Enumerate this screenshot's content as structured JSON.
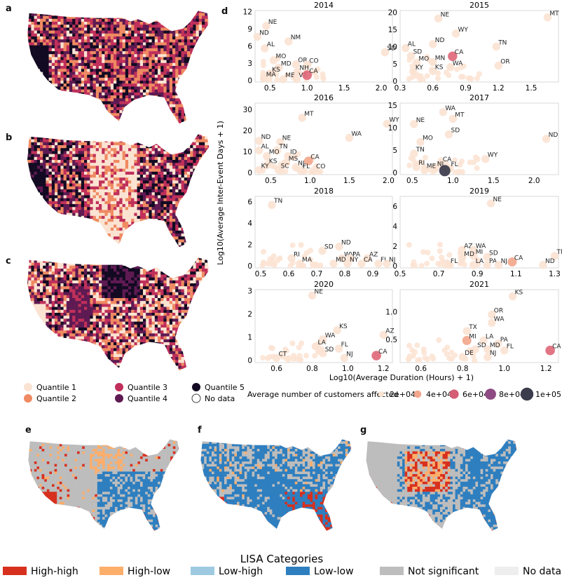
{
  "panel_letters": {
    "a": "a",
    "b": "b",
    "c": "c",
    "d": "d",
    "e": "e",
    "f": "f",
    "g": "g"
  },
  "quantile_legend": {
    "items": [
      {
        "label": "Quantile 1",
        "color": "#fbe3d2"
      },
      {
        "label": "Quantile 2",
        "color": "#ef8a62"
      },
      {
        "label": "Quantile 3",
        "color": "#c0305a"
      },
      {
        "label": "Quantile 4",
        "color": "#5e1a52"
      },
      {
        "label": "Quantile 5",
        "color": "#120a22"
      },
      {
        "label": "No data",
        "color": "#ffffff"
      }
    ]
  },
  "size_legend": {
    "title": "Average number of customers affected",
    "items": [
      {
        "label": "2e+04",
        "value": 20000,
        "color": "#fbe3d2"
      },
      {
        "label": "4e+04",
        "value": 40000,
        "color": "#f3a78d"
      },
      {
        "label": "6e+04",
        "value": 60000,
        "color": "#d45d74"
      },
      {
        "label": "8e+04",
        "value": 80000,
        "color": "#8e4a83"
      },
      {
        "label": "1e+05",
        "value": 100000,
        "color": "#3a3b4c"
      }
    ]
  },
  "lisa_legend": {
    "title": "LISA Categories",
    "items": [
      {
        "label": "High-high",
        "color": "#d7301f"
      },
      {
        "label": "High-low",
        "color": "#fdae6b"
      },
      {
        "label": "Low-high",
        "color": "#9ecae1"
      },
      {
        "label": "Low-low",
        "color": "#2e7fc0"
      },
      {
        "label": "Not significant",
        "color": "#bdbdbd"
      },
      {
        "label": "No data",
        "color": "#eeeeee"
      }
    ]
  },
  "axis_text": {
    "xlabel": "Log10(Average Duration (Hours) + 1)",
    "ylabel": "Log10(Average Inter-Event Days + 1)"
  },
  "chart_data": [
    {
      "type": "scatter",
      "title": "2014",
      "xlim": [
        0.3,
        2.15
      ],
      "ylim": [
        -0.3,
        12.2
      ],
      "xticks": [
        0.5,
        1.0,
        1.5,
        2.0
      ],
      "xtick_labels": [
        "0.5",
        "1.0",
        "1.5",
        "2.0"
      ],
      "yticks": [
        0,
        3,
        6,
        9,
        12
      ],
      "ytick_labels": [
        "0",
        "3",
        "6",
        "9",
        "12"
      ],
      "points": [
        {
          "label": "NE",
          "x": 0.45,
          "y": 9.5
        },
        {
          "label": "ND",
          "x": 0.33,
          "y": 7.6
        },
        {
          "label": "AL",
          "x": 0.43,
          "y": 5.6
        },
        {
          "label": "NM",
          "x": 0.75,
          "y": 6.8
        },
        {
          "label": "MO",
          "x": 0.55,
          "y": 3.5
        },
        {
          "label": "MD",
          "x": 0.62,
          "y": 2.2
        },
        {
          "label": "OR",
          "x": 0.85,
          "y": 2.8
        },
        {
          "label": "CO",
          "x": 1.0,
          "y": 2.7
        },
        {
          "label": "NH",
          "x": 0.87,
          "y": 1.5
        },
        {
          "label": "KS",
          "x": 0.5,
          "y": 1.2
        },
        {
          "label": "MA",
          "x": 0.42,
          "y": 0.3
        },
        {
          "label": "ME",
          "x": 0.68,
          "y": 0.2
        },
        {
          "label": "VT",
          "x": 0.86,
          "y": 0.2
        },
        {
          "label": "CA",
          "x": 1.0,
          "y": 0.9,
          "size": 50000
        },
        {
          "label": "SD",
          "x": 2.05,
          "y": 4.9
        }
      ]
    },
    {
      "type": "scatter",
      "title": "2015",
      "xlim": [
        0.3,
        1.75
      ],
      "ylim": [
        -0.3,
        20.5
      ],
      "xticks": [
        0.3,
        0.6,
        0.9,
        1.2,
        1.5
      ],
      "xtick_labels": [
        "0.3",
        "0.6",
        "0.9",
        "1.2",
        "1.5"
      ],
      "yticks": [
        0,
        5,
        10,
        15,
        20
      ],
      "ytick_labels": [
        "0",
        "5",
        "10",
        "15",
        "20"
      ],
      "points": [
        {
          "label": "NE",
          "x": 0.65,
          "y": 18.2
        },
        {
          "label": "MT",
          "x": 1.65,
          "y": 18.5
        },
        {
          "label": "WY",
          "x": 0.81,
          "y": 13.8
        },
        {
          "label": "ND",
          "x": 0.6,
          "y": 10.7
        },
        {
          "label": "TN",
          "x": 1.18,
          "y": 10.0
        },
        {
          "label": "AL",
          "x": 0.35,
          "y": 9.6
        },
        {
          "label": "SD",
          "x": 0.4,
          "y": 7.3
        },
        {
          "label": "CA",
          "x": 0.78,
          "y": 7.2,
          "size": 45000
        },
        {
          "label": "MO",
          "x": 0.45,
          "y": 5.3
        },
        {
          "label": "MN",
          "x": 0.6,
          "y": 5.5
        },
        {
          "label": "WA",
          "x": 0.76,
          "y": 4.0
        },
        {
          "label": "OR",
          "x": 1.2,
          "y": 4.5
        },
        {
          "label": "KY",
          "x": 0.42,
          "y": 2.8
        },
        {
          "label": "KS",
          "x": 0.6,
          "y": 2.9
        }
      ]
    },
    {
      "type": "scatter",
      "title": "2016",
      "xlim": [
        0.3,
        2.05
      ],
      "ylim": [
        -1,
        33
      ],
      "xticks": [
        0.5,
        1.0,
        1.5,
        2.0
      ],
      "xtick_labels": [
        "0.5",
        "1.0",
        "1.5",
        "2.0"
      ],
      "yticks": [
        0,
        10,
        20,
        30
      ],
      "ytick_labels": [
        "0",
        "10",
        "20",
        "30"
      ],
      "points": [
        {
          "label": "MT",
          "x": 0.9,
          "y": 26.0
        },
        {
          "label": "WY",
          "x": 1.98,
          "y": 23.2
        },
        {
          "label": "WA",
          "x": 1.5,
          "y": 16.5
        },
        {
          "label": "ND",
          "x": 0.35,
          "y": 15.0
        },
        {
          "label": "NE",
          "x": 0.62,
          "y": 14.5
        },
        {
          "label": "AL",
          "x": 0.35,
          "y": 10.5
        },
        {
          "label": "TN",
          "x": 0.58,
          "y": 10.5
        },
        {
          "label": "MO",
          "x": 0.45,
          "y": 7.8
        },
        {
          "label": "ID",
          "x": 0.72,
          "y": 7.8
        },
        {
          "label": "CA",
          "x": 0.98,
          "y": 5.5,
          "size": 32000
        },
        {
          "label": "KS",
          "x": 0.45,
          "y": 3.5
        },
        {
          "label": "MS",
          "x": 0.7,
          "y": 4.6
        },
        {
          "label": "NJ",
          "x": 0.82,
          "y": 2.5
        },
        {
          "label": "KY",
          "x": 0.35,
          "y": 1.2
        },
        {
          "label": "SC",
          "x": 0.6,
          "y": 1.2
        },
        {
          "label": "FL",
          "x": 0.88,
          "y": 1.0
        },
        {
          "label": "CO",
          "x": 1.05,
          "y": 1.0
        }
      ]
    },
    {
      "type": "scatter",
      "title": "2017",
      "xlim": [
        0.35,
        2.3
      ],
      "ylim": [
        -0.5,
        15.5
      ],
      "xticks": [
        0.5,
        1.0,
        1.5,
        2.0
      ],
      "xtick_labels": [
        "0.5",
        "1.0",
        "1.5",
        "2.0"
      ],
      "yticks": [
        0,
        5,
        10,
        15
      ],
      "ytick_labels": [
        "0",
        "5",
        "10",
        "15"
      ],
      "points": [
        {
          "label": "WA",
          "x": 0.88,
          "y": 13.5
        },
        {
          "label": "MT",
          "x": 1.0,
          "y": 12.0
        },
        {
          "label": "NE",
          "x": 0.52,
          "y": 10.8
        },
        {
          "label": "SD",
          "x": 0.95,
          "y": 8.5
        },
        {
          "label": "ND",
          "x": 2.15,
          "y": 7.5
        },
        {
          "label": "MO",
          "x": 0.6,
          "y": 6.8
        },
        {
          "label": "TN",
          "x": 0.52,
          "y": 4.2
        },
        {
          "label": "WY",
          "x": 1.4,
          "y": 3.0
        },
        {
          "label": "CA",
          "x": 0.85,
          "y": 2.0
        },
        {
          "label": "RI",
          "x": 0.55,
          "y": 1.2
        },
        {
          "label": "NJ",
          "x": 0.78,
          "y": 1.0
        },
        {
          "label": "ME",
          "x": 0.65,
          "y": 0.5
        },
        {
          "label": "FL",
          "x": 0.95,
          "y": 0.9
        },
        {
          "label": "",
          "x": 0.9,
          "y": 0.4,
          "size": 100000
        }
      ]
    },
    {
      "type": "scatter",
      "title": "2018",
      "xlim": [
        0.48,
        0.97
      ],
      "ylim": [
        -0.2,
        6.5
      ],
      "xticks": [
        0.5,
        0.6,
        0.7,
        0.8,
        0.9
      ],
      "xtick_labels": [
        "0.5",
        "0.6",
        "0.7",
        "0.8",
        "0.9"
      ],
      "yticks": [
        0,
        2,
        4,
        6
      ],
      "ytick_labels": [
        "0",
        "2",
        "4",
        "6"
      ],
      "points": [
        {
          "label": "TN",
          "x": 0.54,
          "y": 5.7
        },
        {
          "label": "ND",
          "x": 0.78,
          "y": 1.8
        },
        {
          "label": "SD",
          "x": 0.72,
          "y": 1.4
        },
        {
          "label": "RI",
          "x": 0.61,
          "y": 0.7
        },
        {
          "label": "WV",
          "x": 0.79,
          "y": 0.7
        },
        {
          "label": "PA",
          "x": 0.82,
          "y": 0.7
        },
        {
          "label": "AZ",
          "x": 0.88,
          "y": 0.7
        },
        {
          "label": "MA",
          "x": 0.64,
          "y": 0.2
        },
        {
          "label": "MD",
          "x": 0.76,
          "y": 0.2
        },
        {
          "label": "NY",
          "x": 0.81,
          "y": 0.2
        },
        {
          "label": "CA",
          "x": 0.86,
          "y": 0.2
        },
        {
          "label": "FL",
          "x": 0.92,
          "y": 0.2
        },
        {
          "label": "NJ",
          "x": 0.95,
          "y": 0.2
        }
      ]
    },
    {
      "type": "scatter",
      "title": "2019",
      "xlim": [
        0.5,
        1.32
      ],
      "ylim": [
        -0.2,
        7
      ],
      "xticks": [
        0.5,
        0.7,
        0.9,
        1.1,
        1.3
      ],
      "xtick_labels": [
        "0.5",
        "0.7",
        "0.9",
        "1.1",
        "1.3"
      ],
      "yticks": [
        0,
        2,
        4,
        6
      ],
      "ytick_labels": [
        "0",
        "2",
        "4",
        "6"
      ],
      "points": [
        {
          "label": "NE",
          "x": 0.97,
          "y": 6.3
        },
        {
          "label": "AZ",
          "x": 0.82,
          "y": 1.6
        },
        {
          "label": "WA",
          "x": 0.88,
          "y": 1.6
        },
        {
          "label": "MI",
          "x": 0.88,
          "y": 1.0
        },
        {
          "label": "MD",
          "x": 0.82,
          "y": 0.8
        },
        {
          "label": "SD",
          "x": 0.95,
          "y": 0.9
        },
        {
          "label": "TN",
          "x": 1.3,
          "y": 1.0
        },
        {
          "label": "CA",
          "x": 1.08,
          "y": 0.4,
          "size": 38000
        },
        {
          "label": "FL",
          "x": 0.75,
          "y": 0.1
        },
        {
          "label": "LA",
          "x": 0.88,
          "y": 0.1
        },
        {
          "label": "PA",
          "x": 0.95,
          "y": 0.1
        },
        {
          "label": "NJ",
          "x": 1.01,
          "y": 0.1
        },
        {
          "label": "ND",
          "x": 1.24,
          "y": 0.1
        }
      ]
    },
    {
      "type": "scatter",
      "title": "2020",
      "xlim": [
        0.48,
        1.25
      ],
      "ylim": [
        -0.1,
        3.05
      ],
      "xticks": [
        0.6,
        0.8,
        1.0,
        1.2
      ],
      "xtick_labels": [
        "0.6",
        "0.8",
        "1.0",
        "1.2"
      ],
      "yticks": [
        0,
        1,
        2,
        3
      ],
      "ytick_labels": [
        "0",
        "1",
        "2",
        "3"
      ],
      "points": [
        {
          "label": "NE",
          "x": 0.8,
          "y": 2.8
        },
        {
          "label": "KS",
          "x": 0.94,
          "y": 1.3
        },
        {
          "label": "AZ",
          "x": 1.2,
          "y": 1.1
        },
        {
          "label": "WA",
          "x": 0.86,
          "y": 0.9
        },
        {
          "label": "LA",
          "x": 0.82,
          "y": 0.6
        },
        {
          "label": "SD",
          "x": 0.86,
          "y": 0.3
        },
        {
          "label": "FL",
          "x": 0.95,
          "y": 0.5
        },
        {
          "label": "NJ",
          "x": 0.98,
          "y": 0.1
        },
        {
          "label": "CT",
          "x": 0.6,
          "y": 0.1
        },
        {
          "label": "CA",
          "x": 1.16,
          "y": 0.2,
          "size": 50000
        }
      ]
    },
    {
      "type": "scatter",
      "title": "2021",
      "xlim": [
        0.5,
        1.26
      ],
      "ylim": [
        0.08,
        1.4
      ],
      "xticks": [
        0.6,
        0.8,
        1.0,
        1.2
      ],
      "xtick_labels": [
        "0.6",
        "0.8",
        "1.0",
        "1.2"
      ],
      "yticks": [
        0.5,
        1.0
      ],
      "ytick_labels": [
        "0.5",
        "1.0"
      ],
      "points": [
        {
          "label": "KS",
          "x": 1.04,
          "y": 1.28
        },
        {
          "label": "OR",
          "x": 0.94,
          "y": 0.95
        },
        {
          "label": "WA",
          "x": 0.94,
          "y": 0.8
        },
        {
          "label": "TX",
          "x": 0.82,
          "y": 0.65
        },
        {
          "label": "MI",
          "x": 0.82,
          "y": 0.48,
          "size": 38000
        },
        {
          "label": "LA",
          "x": 0.9,
          "y": 0.48
        },
        {
          "label": "PA",
          "x": 0.97,
          "y": 0.42
        },
        {
          "label": "SD",
          "x": 0.86,
          "y": 0.32
        },
        {
          "label": "MD",
          "x": 0.92,
          "y": 0.32
        },
        {
          "label": "FL",
          "x": 1.0,
          "y": 0.3
        },
        {
          "label": "NJ",
          "x": 0.92,
          "y": 0.18
        },
        {
          "label": "DE",
          "x": 0.8,
          "y": 0.18
        },
        {
          "label": "CA",
          "x": 1.22,
          "y": 0.3,
          "size": 48000
        }
      ]
    }
  ]
}
